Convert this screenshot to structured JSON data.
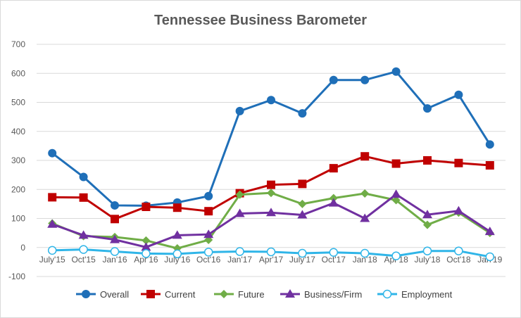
{
  "chart_data": {
    "type": "line",
    "title": "Tennessee Business Barometer",
    "categories": [
      "July'15",
      "Oct'15",
      "Jan'16",
      "Apr'16",
      "July'16",
      "Oct'16",
      "Jan'17",
      "Apr'17",
      "July'17",
      "Oct'17",
      "Jan'18",
      "Apr'18",
      "July'18",
      "Oct'18",
      "Jan'19"
    ],
    "ylim": [
      -100,
      700
    ],
    "yticks": [
      -100,
      0,
      100,
      200,
      300,
      400,
      500,
      600,
      700
    ],
    "grid": "horizontal",
    "legend_position": "bottom",
    "series": [
      {
        "name": "Overall",
        "color": "#1f6fb8",
        "marker": "circle",
        "values": [
          325,
          243,
          145,
          144,
          155,
          177,
          470,
          508,
          462,
          577,
          577,
          606,
          479,
          526,
          355
        ]
      },
      {
        "name": "Current",
        "color": "#c00000",
        "marker": "square",
        "values": [
          173,
          172,
          98,
          140,
          137,
          125,
          187,
          216,
          219,
          273,
          314,
          289,
          300,
          291,
          283
        ]
      },
      {
        "name": "Future",
        "color": "#70ad47",
        "marker": "diamond",
        "values": [
          83,
          39,
          36,
          24,
          -3,
          26,
          182,
          188,
          150,
          170,
          186,
          163,
          78,
          120,
          50
        ]
      },
      {
        "name": "Business/Firm",
        "color": "#7030a0",
        "marker": "triangle",
        "values": [
          80,
          42,
          27,
          1,
          42,
          45,
          117,
          120,
          112,
          153,
          100,
          183,
          113,
          126,
          55
        ]
      },
      {
        "name": "Employment",
        "color": "#2fb5e8",
        "marker": "open-circle",
        "values": [
          -10,
          -7,
          -14,
          -21,
          -22,
          -16,
          -14,
          -15,
          -20,
          -17,
          -20,
          -29,
          -12,
          -12,
          -32
        ]
      }
    ]
  }
}
